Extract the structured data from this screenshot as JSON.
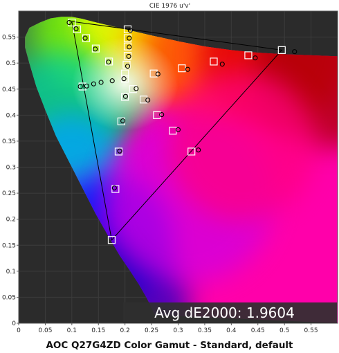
{
  "caption": "AOC Q27G4ZD Color Gamut - Standard, default",
  "chart_data": {
    "type": "scatter",
    "title": "CIE 1976 u'v'",
    "xlabel": "",
    "ylabel": "",
    "xlim": [
      0,
      0.6
    ],
    "ylim": [
      0,
      0.6
    ],
    "x_ticks": [
      0,
      0.05,
      0.1,
      0.15,
      0.2,
      0.25,
      0.3,
      0.35,
      0.4,
      0.45,
      0.5,
      0.55
    ],
    "x_tick_labels": [
      "0",
      "0.05",
      "0.1",
      "0.15",
      "0.2",
      "0.25",
      "0.3",
      "0.35",
      "0.4",
      "0.45",
      "0.5",
      "0.55"
    ],
    "y_ticks": [
      0,
      0.05,
      0.1,
      0.15,
      0.2,
      0.25,
      0.3,
      0.35,
      0.4,
      0.45,
      0.5,
      0.55
    ],
    "y_tick_labels": [
      "0",
      "0.05",
      "0.1",
      "0.15",
      "0.2",
      "0.25",
      "0.3",
      "0.35",
      "0.4",
      "0.45",
      "0.5",
      "0.55"
    ],
    "annotation": "Avg dE2000: 1.9604",
    "background": "#2b2b2b",
    "spectral_locus": [
      [
        0.257,
        0.016
      ],
      [
        0.254,
        0.02
      ],
      [
        0.25,
        0.03
      ],
      [
        0.24,
        0.05
      ],
      [
        0.226,
        0.075
      ],
      [
        0.21,
        0.1
      ],
      [
        0.19,
        0.13
      ],
      [
        0.17,
        0.165
      ],
      [
        0.145,
        0.21
      ],
      [
        0.12,
        0.26
      ],
      [
        0.095,
        0.31
      ],
      [
        0.07,
        0.36
      ],
      [
        0.05,
        0.41
      ],
      [
        0.033,
        0.455
      ],
      [
        0.02,
        0.5
      ],
      [
        0.012,
        0.53
      ],
      [
        0.012,
        0.55
      ],
      [
        0.02,
        0.568
      ],
      [
        0.04,
        0.578
      ],
      [
        0.06,
        0.586
      ],
      [
        0.08,
        0.589
      ],
      [
        0.1,
        0.589
      ],
      [
        0.12,
        0.585
      ],
      [
        0.15,
        0.577
      ],
      [
        0.2,
        0.565
      ],
      [
        0.25,
        0.553
      ],
      [
        0.3,
        0.542
      ],
      [
        0.35,
        0.532
      ],
      [
        0.4,
        0.525
      ],
      [
        0.45,
        0.52
      ],
      [
        0.5,
        0.517
      ],
      [
        0.55,
        0.515
      ],
      [
        0.6,
        0.513
      ]
    ],
    "gamut_triangle": [
      [
        0.495,
        0.525
      ],
      [
        0.1,
        0.58
      ],
      [
        0.175,
        0.16
      ]
    ],
    "series": [
      {
        "role": "target",
        "points": [
          [
            0.1,
            0.578
          ],
          [
            0.11,
            0.565
          ],
          [
            0.127,
            0.548
          ],
          [
            0.145,
            0.528
          ],
          [
            0.17,
            0.503
          ],
          [
            0.2,
            0.47
          ],
          [
            0.12,
            0.455
          ],
          [
            0.205,
            0.565
          ],
          [
            0.205,
            0.548
          ],
          [
            0.205,
            0.532
          ],
          [
            0.205,
            0.514
          ],
          [
            0.203,
            0.497
          ],
          [
            0.2,
            0.48
          ],
          [
            0.254,
            0.48
          ],
          [
            0.307,
            0.49
          ],
          [
            0.367,
            0.503
          ],
          [
            0.432,
            0.515
          ],
          [
            0.495,
            0.525
          ],
          [
            0.215,
            0.45
          ],
          [
            0.2,
            0.435
          ],
          [
            0.235,
            0.43
          ],
          [
            0.26,
            0.4
          ],
          [
            0.29,
            0.37
          ],
          [
            0.325,
            0.33
          ],
          [
            0.193,
            0.388
          ],
          [
            0.188,
            0.33
          ],
          [
            0.182,
            0.258
          ],
          [
            0.175,
            0.16
          ]
        ]
      },
      {
        "role": "measured",
        "points": [
          [
            0.095,
            0.578
          ],
          [
            0.108,
            0.566
          ],
          [
            0.125,
            0.548
          ],
          [
            0.144,
            0.527
          ],
          [
            0.169,
            0.502
          ],
          [
            0.198,
            0.47
          ],
          [
            0.116,
            0.455
          ],
          [
            0.128,
            0.456
          ],
          [
            0.141,
            0.46
          ],
          [
            0.155,
            0.463
          ],
          [
            0.176,
            0.466
          ],
          [
            0.21,
            0.563
          ],
          [
            0.208,
            0.548
          ],
          [
            0.208,
            0.531
          ],
          [
            0.207,
            0.513
          ],
          [
            0.205,
            0.494
          ],
          [
            0.262,
            0.479
          ],
          [
            0.318,
            0.488
          ],
          [
            0.383,
            0.498
          ],
          [
            0.445,
            0.51
          ],
          [
            0.519,
            0.522
          ],
          [
            0.221,
            0.451
          ],
          [
            0.201,
            0.436
          ],
          [
            0.243,
            0.429
          ],
          [
            0.269,
            0.401
          ],
          [
            0.3,
            0.372
          ],
          [
            0.338,
            0.333
          ],
          [
            0.196,
            0.389
          ],
          [
            0.19,
            0.331
          ],
          [
            0.18,
            0.26
          ]
        ]
      }
    ]
  }
}
